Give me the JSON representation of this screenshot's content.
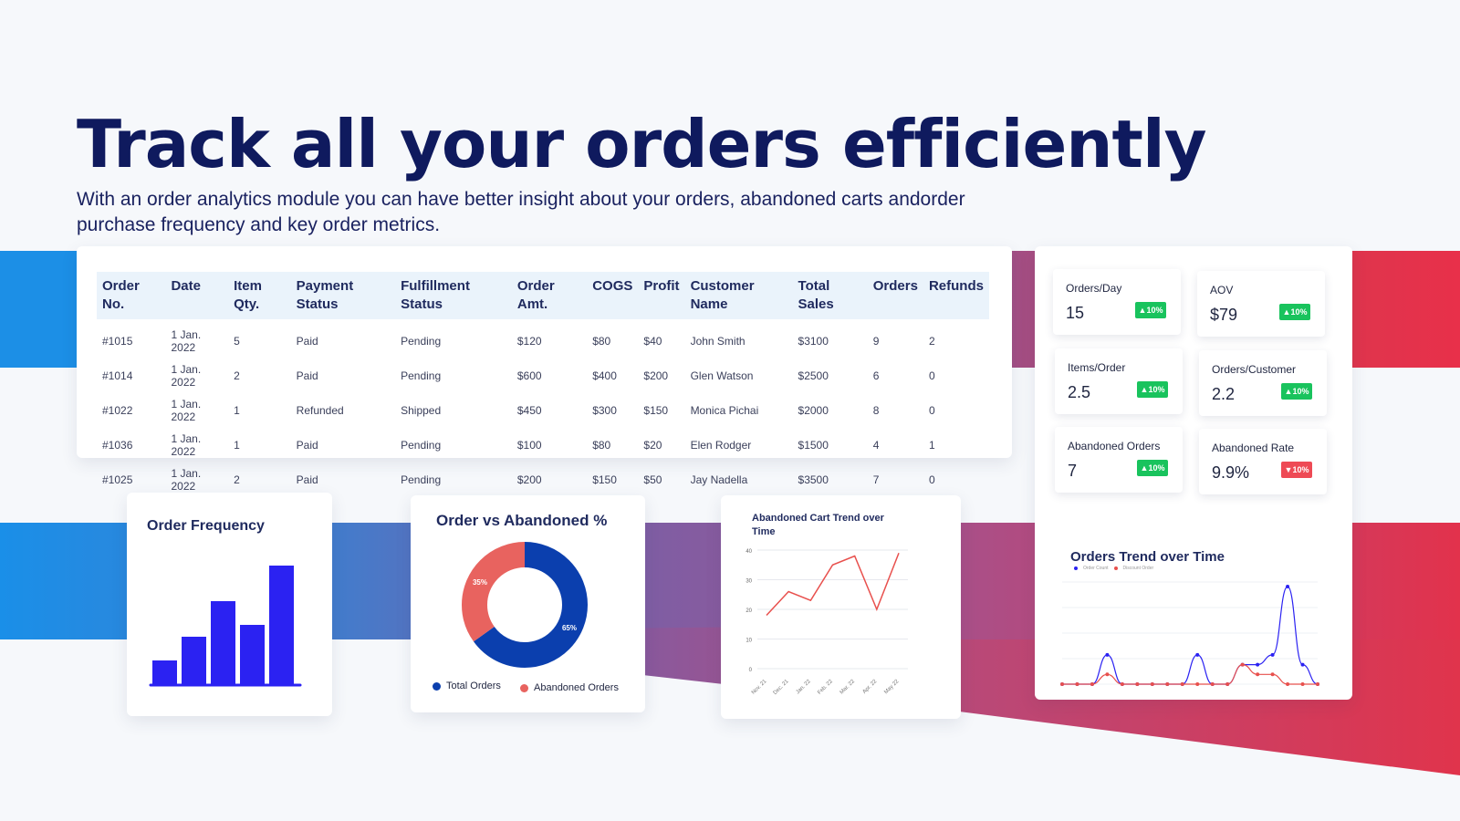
{
  "hero": {
    "title": "Track all your orders efficiently",
    "subtitle": "With an order analytics module you can have better insight about your orders, abandoned carts andorder purchase frequency and key order metrics."
  },
  "orders_table": {
    "columns": [
      "Order No.",
      "Date",
      "Item Qty.",
      "Payment Status",
      "Fulfillment Status",
      "Order Amt.",
      "COGS",
      "Profit",
      "Customer Name",
      "Total Sales",
      "Orders",
      "Refunds"
    ],
    "rows": [
      [
        "#1015",
        "1 Jan. 2022",
        "5",
        "Paid",
        "Pending",
        "$120",
        "$80",
        "$40",
        "John Smith",
        "$3100",
        "9",
        "2"
      ],
      [
        "#1014",
        "1 Jan. 2022",
        "2",
        "Paid",
        "Pending",
        "$600",
        "$400",
        "$200",
        "Glen Watson",
        "$2500",
        "6",
        "0"
      ],
      [
        "#1022",
        "1 Jan. 2022",
        "1",
        "Refunded",
        "Shipped",
        "$450",
        "$300",
        "$150",
        "Monica Pichai",
        "$2000",
        "8",
        "0"
      ],
      [
        "#1036",
        "1 Jan. 2022",
        "1",
        "Paid",
        "Pending",
        "$100",
        "$80",
        "$20",
        "Elen Rodger",
        "$1500",
        "4",
        "1"
      ],
      [
        "#1025",
        "1 Jan. 2022",
        "2",
        "Paid",
        "Pending",
        "$200",
        "$150",
        "$50",
        "Jay  Nadella",
        "$3500",
        "7",
        "0"
      ]
    ]
  },
  "kpis": [
    {
      "label": "Orders/Day",
      "value": "15",
      "change": "10%",
      "direction": "up"
    },
    {
      "label": "AOV",
      "value": "$79",
      "change": "10%",
      "direction": "up"
    },
    {
      "label": "Items/Order",
      "value": "2.5",
      "change": "10%",
      "direction": "up"
    },
    {
      "label": "Orders/Customer",
      "value": "2.2",
      "change": "10%",
      "direction": "up"
    },
    {
      "label": "Abandoned Orders",
      "value": "7",
      "change": "10%",
      "direction": "up"
    },
    {
      "label": "Abandoned Rate",
      "value": "9.9%",
      "change": "10%",
      "direction": "down"
    }
  ],
  "colors": {
    "title": "#0f1a5e",
    "bar": "#2b22f2",
    "donut_orders": "#0b3fae",
    "donut_abandoned": "#e8635f",
    "line_red": "#e8504d",
    "line_blue": "#2b22f2",
    "badge_up": "#19c35d",
    "badge_down": "#ee4a55"
  },
  "chart_data": [
    {
      "type": "bar",
      "title": "Order Frequency",
      "categories": [
        "",
        "",
        "",
        "",
        ""
      ],
      "values": [
        2,
        4,
        7,
        5,
        10
      ]
    },
    {
      "type": "pie",
      "title": "Order vs Abandoned %",
      "labels": [
        "Total Orders",
        "Abandoned Orders"
      ],
      "values": [
        65,
        35
      ],
      "value_labels": [
        "65%",
        "35%"
      ],
      "legend_position": "bottom"
    },
    {
      "type": "line",
      "title": "Abandoned Cart Trend over Time",
      "x": [
        "Nov. 21",
        "Dec. 21",
        "Jan. 22",
        "Feb. 22",
        "Mar. 22",
        "Apr. 22",
        "May 22"
      ],
      "series": [
        {
          "values": [
            18,
            26,
            23,
            35,
            38,
            20,
            39
          ]
        }
      ],
      "yticks": [
        "0",
        "10",
        "20",
        "30",
        "40"
      ],
      "ylim": [
        0,
        40
      ],
      "grid": true
    },
    {
      "type": "line",
      "title": "Orders Trend over Time",
      "legend": [
        "Order Count",
        "Discount Order"
      ],
      "series": [
        {
          "name": "Order Count",
          "values": [
            0,
            0,
            0,
            3,
            0,
            0,
            0,
            0,
            0,
            3,
            0,
            0,
            2,
            2,
            3,
            10,
            2,
            0
          ]
        },
        {
          "name": "Discount Order",
          "values": [
            0,
            0,
            0,
            1,
            0,
            0,
            0,
            0,
            0,
            0,
            0,
            0,
            2,
            1,
            1,
            0,
            0,
            0
          ]
        }
      ],
      "grid": true
    }
  ]
}
